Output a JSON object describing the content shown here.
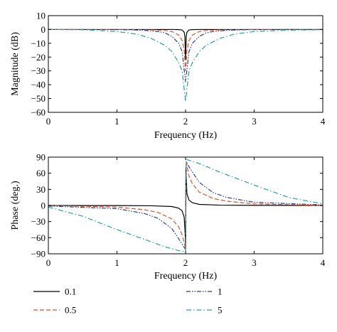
{
  "chart_data": [
    {
      "type": "line",
      "title": "",
      "xlabel": "Frequency (Hz)",
      "ylabel": "Magnitude (dB)",
      "xlim": [
        0,
        4
      ],
      "ylim": [
        -60,
        10
      ],
      "xticks": [
        "0",
        "1",
        "2",
        "3",
        "4"
      ],
      "yticks": [
        "10",
        "0",
        "−10",
        "−20",
        "−30",
        "−40",
        "−50",
        "−60"
      ],
      "notch_frequency": 2,
      "series": [
        {
          "name": "0.1",
          "color": "#000000",
          "dash": "solid",
          "x": [
            0,
            1.0,
            1.5,
            1.8,
            1.9,
            1.95,
            1.98,
            1.99,
            2.0,
            2.01,
            2.02,
            2.05,
            2.1,
            2.2,
            2.5,
            3.0,
            4.0
          ],
          "y": [
            0,
            0,
            0,
            0,
            -0.1,
            -0.4,
            -2,
            -5,
            -22,
            -5,
            -2,
            -0.4,
            -0.1,
            0,
            0,
            0,
            0
          ]
        },
        {
          "name": "0.5",
          "color": "#e2512a",
          "dash": "dashed",
          "x": [
            0,
            1.0,
            1.5,
            1.7,
            1.8,
            1.9,
            1.95,
            1.98,
            2.0,
            2.02,
            2.05,
            2.1,
            2.2,
            2.3,
            2.5,
            3.0,
            4.0
          ],
          "y": [
            0,
            0,
            -0.3,
            -0.7,
            -1.5,
            -4,
            -8,
            -15,
            -30,
            -15,
            -8,
            -4,
            -1.5,
            -0.7,
            -0.3,
            0,
            0
          ]
        },
        {
          "name": "1",
          "color": "#2b3f8f",
          "dash": "dashdotdot",
          "x": [
            0,
            1.0,
            1.4,
            1.6,
            1.7,
            1.8,
            1.9,
            1.95,
            2.0,
            2.05,
            2.1,
            2.2,
            2.3,
            2.4,
            2.6,
            3.0,
            4.0
          ],
          "y": [
            0,
            -0.1,
            -0.6,
            -1.5,
            -2.5,
            -5,
            -10,
            -16,
            -38,
            -16,
            -10,
            -5,
            -2.5,
            -1.5,
            -0.6,
            -0.1,
            0
          ]
        },
        {
          "name": "5",
          "color": "#2a9fa3",
          "dash": "dashdot",
          "x": [
            0,
            0.5,
            1.0,
            1.3,
            1.5,
            1.7,
            1.8,
            1.9,
            1.95,
            2.0,
            2.05,
            2.1,
            2.2,
            2.3,
            2.5,
            2.7,
            3.0,
            3.5,
            4.0
          ],
          "y": [
            0,
            -0.2,
            -1.5,
            -3.5,
            -6.5,
            -11.5,
            -16,
            -24,
            -30,
            -52,
            -30,
            -24,
            -16,
            -11.5,
            -6.5,
            -3.5,
            -1.5,
            -0.5,
            -0.2
          ]
        }
      ]
    },
    {
      "type": "line",
      "title": "",
      "xlabel": "Frequency (Hz)",
      "ylabel": "Phase (deg.)",
      "xlim": [
        0,
        4
      ],
      "ylim": [
        -90,
        90
      ],
      "xticks": [
        "0",
        "1",
        "2",
        "3",
        "4"
      ],
      "yticks": [
        "90",
        "60",
        "30",
        "0",
        "−30",
        "−60",
        "−90"
      ],
      "series": [
        {
          "name": "0.1",
          "color": "#000000",
          "dash": "solid",
          "x": [
            0,
            1.0,
            1.5,
            1.8,
            1.9,
            1.95,
            1.98,
            1.995,
            2.0,
            2.005,
            2.02,
            2.05,
            2.1,
            2.2,
            2.5,
            3.0,
            4.0
          ],
          "y": [
            0,
            -0.2,
            -0.6,
            -2,
            -5,
            -10,
            -22,
            -55,
            -80,
            72,
            22,
            10,
            5,
            2,
            0.6,
            0.2,
            0
          ]
        },
        {
          "name": "0.5",
          "color": "#e2512a",
          "dash": "dashed",
          "x": [
            0,
            1.0,
            1.4,
            1.6,
            1.8,
            1.9,
            1.95,
            1.98,
            2.0,
            2.01,
            2.05,
            2.1,
            2.2,
            2.4,
            2.6,
            3.0,
            4.0
          ],
          "y": [
            0,
            -3,
            -8,
            -13,
            -25,
            -40,
            -55,
            -70,
            -80,
            80,
            55,
            40,
            25,
            13,
            8,
            3,
            0
          ]
        },
        {
          "name": "1",
          "color": "#2b3f8f",
          "dash": "dashdotdot",
          "x": [
            0,
            1.0,
            1.4,
            1.6,
            1.8,
            1.9,
            1.95,
            2.0,
            2.01,
            2.05,
            2.1,
            2.2,
            2.4,
            2.6,
            3.0,
            4.0
          ],
          "y": [
            -1,
            -6,
            -15,
            -24,
            -43,
            -62,
            -72,
            -82,
            82,
            72,
            62,
            43,
            24,
            15,
            6,
            1
          ]
        },
        {
          "name": "5",
          "color": "#2a9fa3",
          "dash": "dashdot",
          "x": [
            0,
            0.5,
            1.0,
            1.4,
            1.7,
            1.9,
            2.0,
            2.01,
            2.05,
            2.2,
            2.5,
            3.0,
            3.5,
            4.0
          ],
          "y": [
            -3,
            -20,
            -45,
            -63,
            -77,
            -84,
            -86,
            86,
            84,
            78,
            62,
            38,
            15,
            3
          ]
        }
      ]
    }
  ],
  "legend": {
    "items": [
      {
        "label": "0.1",
        "color": "#000000",
        "dash": "solid"
      },
      {
        "label": "0.5",
        "color": "#e2512a",
        "dash": "dashed"
      },
      {
        "label": "1",
        "color": "#2b3f8f",
        "dash": "dashdotdot"
      },
      {
        "label": "5",
        "color": "#2a9fa3",
        "dash": "dashdot"
      }
    ]
  }
}
